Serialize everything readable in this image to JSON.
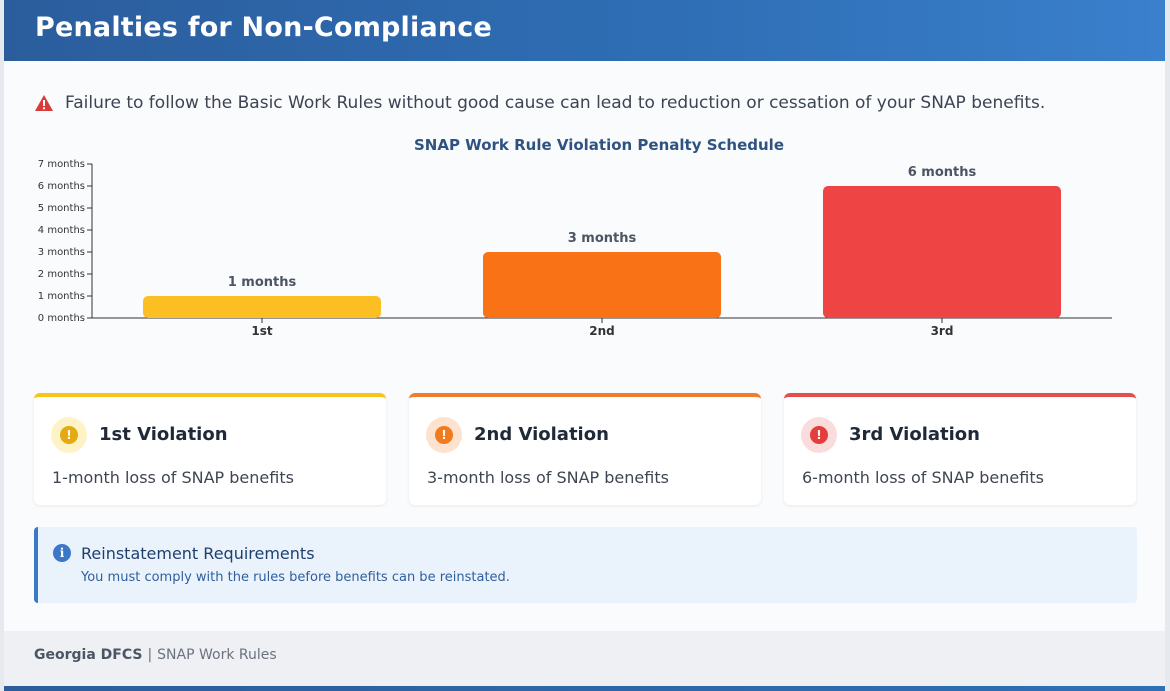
{
  "header": {
    "title": "Penalties for Non-Compliance"
  },
  "alert": {
    "icon": "warning-icon",
    "text": "Failure to follow the Basic Work Rules without good cause can lead to reduction or cessation of your SNAP benefits."
  },
  "chart_data": {
    "type": "bar",
    "title": "SNAP Work Rule Violation Penalty Schedule",
    "categories": [
      "1st",
      "2nd",
      "3rd"
    ],
    "values": [
      1,
      3,
      6
    ],
    "data_labels": [
      "1 months",
      "3 months",
      "6 months"
    ],
    "colors": [
      "#fbbf24",
      "#f97316",
      "#ef4444"
    ],
    "ylim": [
      0,
      7
    ],
    "yticks": [
      "0 months",
      "1 months",
      "2 months",
      "3 months",
      "4 months",
      "5 months",
      "6 months",
      "7 months"
    ],
    "xlabel": "",
    "ylabel": "",
    "grid": false
  },
  "cards": [
    {
      "title": "1st Violation",
      "desc": "1-month loss of SNAP benefits",
      "color": "#f5c518",
      "icon_bg": "#fdf3c6",
      "icon_color": "#e5a911",
      "icon": "exclamation-icon"
    },
    {
      "title": "2nd Violation",
      "desc": "3-month loss of SNAP benefits",
      "color": "#ee7d2c",
      "icon_bg": "#fde3cf",
      "icon_color": "#f07a1c",
      "icon": "exclamation-icon"
    },
    {
      "title": "3rd Violation",
      "desc": "6-month loss of SNAP benefits",
      "color": "#e44d4d",
      "icon_bg": "#fbdcdc",
      "icon_color": "#e43d3d",
      "icon": "exclamation-icon"
    }
  ],
  "info": {
    "icon": "info-icon",
    "title": "Reinstatement Requirements",
    "text": "You must comply with the rules before benefits can be reinstated."
  },
  "footer": {
    "brand": "Georgia DFCS",
    "separator": "|",
    "text": "SNAP Work Rules"
  }
}
